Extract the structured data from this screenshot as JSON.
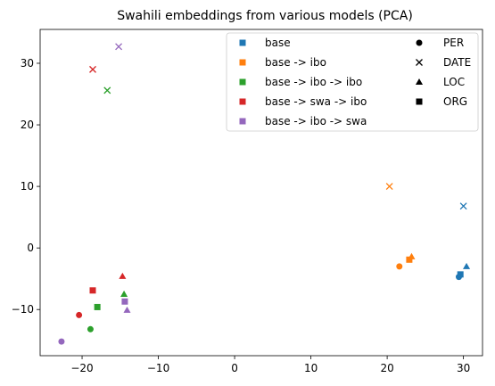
{
  "chart_data": {
    "type": "scatter",
    "title": "Swahili embeddings from various models (PCA)",
    "xlabel": "",
    "ylabel": "",
    "xlim": [
      -25.5,
      32.5
    ],
    "ylim": [
      -17.5,
      35.5
    ],
    "xticks": [
      -20,
      -10,
      0,
      10,
      20,
      30
    ],
    "yticks": [
      -10,
      0,
      10,
      20,
      30
    ],
    "grid": false,
    "legend_placement": "top-right",
    "models": [
      {
        "name": "base",
        "color": "#1f77b4"
      },
      {
        "name": "base -> ibo",
        "color": "#ff7f0e"
      },
      {
        "name": "base -> ibo -> ibo",
        "color": "#2ca02c"
      },
      {
        "name": "base -> swa -> ibo",
        "color": "#d62728"
      },
      {
        "name": "base -> ibo -> swa",
        "color": "#9467bd"
      }
    ],
    "entity_types": [
      {
        "name": "PER",
        "marker": "circle"
      },
      {
        "name": "DATE",
        "marker": "x"
      },
      {
        "name": "LOC",
        "marker": "triangle"
      },
      {
        "name": "ORG",
        "marker": "square"
      }
    ],
    "points": [
      {
        "model": 0,
        "entity": "PER",
        "x": 29.4,
        "y": -4.7
      },
      {
        "model": 0,
        "entity": "DATE",
        "x": 30.0,
        "y": 6.8
      },
      {
        "model": 0,
        "entity": "LOC",
        "x": 30.4,
        "y": -3.0
      },
      {
        "model": 0,
        "entity": "ORG",
        "x": 29.6,
        "y": -4.3
      },
      {
        "model": 1,
        "entity": "PER",
        "x": 21.6,
        "y": -3.0
      },
      {
        "model": 1,
        "entity": "DATE",
        "x": 20.3,
        "y": 10.0
      },
      {
        "model": 1,
        "entity": "LOC",
        "x": 23.2,
        "y": -1.4
      },
      {
        "model": 1,
        "entity": "ORG",
        "x": 22.9,
        "y": -1.9
      },
      {
        "model": 2,
        "entity": "PER",
        "x": -18.9,
        "y": -13.2
      },
      {
        "model": 2,
        "entity": "DATE",
        "x": -16.7,
        "y": 25.6
      },
      {
        "model": 2,
        "entity": "LOC",
        "x": -14.5,
        "y": -7.5
      },
      {
        "model": 2,
        "entity": "ORG",
        "x": -18.0,
        "y": -9.6
      },
      {
        "model": 3,
        "entity": "PER",
        "x": -20.4,
        "y": -10.9
      },
      {
        "model": 3,
        "entity": "DATE",
        "x": -18.6,
        "y": 29.0
      },
      {
        "model": 3,
        "entity": "LOC",
        "x": -14.7,
        "y": -4.6
      },
      {
        "model": 3,
        "entity": "ORG",
        "x": -18.6,
        "y": -6.9
      },
      {
        "model": 4,
        "entity": "PER",
        "x": -22.7,
        "y": -15.2
      },
      {
        "model": 4,
        "entity": "DATE",
        "x": -15.2,
        "y": 32.7
      },
      {
        "model": 4,
        "entity": "LOC",
        "x": -14.1,
        "y": -10.1
      },
      {
        "model": 4,
        "entity": "ORG",
        "x": -14.4,
        "y": -8.7
      }
    ]
  }
}
